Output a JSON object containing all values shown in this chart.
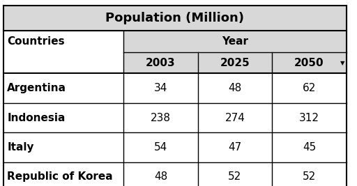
{
  "title": "Population (Million)",
  "col_header_1": "Countries",
  "col_header_2": "Year",
  "year_cols": [
    "2003",
    "2025",
    "2050"
  ],
  "rows": [
    [
      "Argentina",
      34,
      48,
      62
    ],
    [
      "Indonesia",
      238,
      274,
      312
    ],
    [
      "Italy",
      54,
      47,
      45
    ],
    [
      "Republic of Korea",
      48,
      52,
      52
    ]
  ],
  "bg_color": "#ffffff",
  "header_bg": "#d9d9d9",
  "line_color": "#000000",
  "text_color": "#000000",
  "title_fontsize": 13,
  "header_fontsize": 11,
  "cell_fontsize": 11
}
